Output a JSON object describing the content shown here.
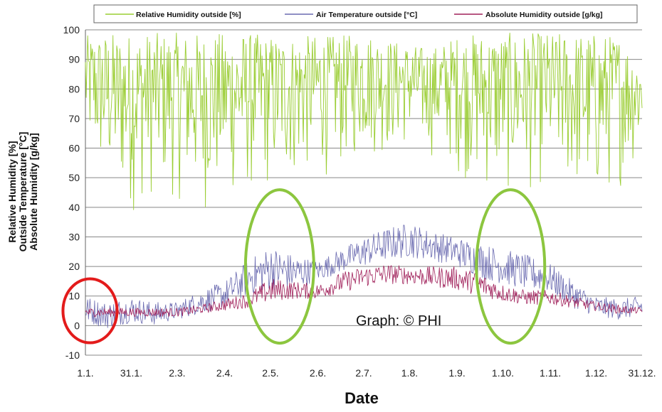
{
  "chart_data": {
    "type": "line",
    "xlabel": "Date",
    "ylabel_lines": [
      "Relative Humidity [%]",
      "Outside Temperature  [°C]",
      "Absolute Humidity [g/kg]"
    ],
    "ylim": [
      -10,
      100
    ],
    "yticks": [
      -10,
      0,
      10,
      20,
      30,
      40,
      50,
      60,
      70,
      80,
      90,
      100
    ],
    "xlim": [
      1,
      365
    ],
    "x_ticks": [
      {
        "day": 1,
        "label": "1.1."
      },
      {
        "day": 31,
        "label": "31.1."
      },
      {
        "day": 61,
        "label": "2.3."
      },
      {
        "day": 92,
        "label": "2.4."
      },
      {
        "day": 122,
        "label": "2.5."
      },
      {
        "day": 153,
        "label": "2.6."
      },
      {
        "day": 183,
        "label": "2.7."
      },
      {
        "day": 213,
        "label": "1.8."
      },
      {
        "day": 244,
        "label": "1.9."
      },
      {
        "day": 274,
        "label": "1.10."
      },
      {
        "day": 305,
        "label": "1.11."
      },
      {
        "day": 335,
        "label": "1.12."
      },
      {
        "day": 365,
        "label": "31.12."
      }
    ],
    "grid": "horizontal",
    "legend_position": "top",
    "annotation": "Graph: © PHI",
    "series": [
      {
        "name": "Relative Humidity outside [%]",
        "color": "#9acd32",
        "x": [
          1,
          15,
          31,
          45,
          61,
          76,
          92,
          107,
          122,
          137,
          153,
          168,
          183,
          198,
          213,
          228,
          244,
          259,
          274,
          289,
          305,
          320,
          335,
          350,
          365
        ],
        "high": [
          98,
          99,
          99,
          99,
          99,
          99,
          99,
          99,
          98,
          98,
          98,
          98,
          99,
          97,
          95,
          94,
          98,
          99,
          99,
          99,
          99,
          99,
          99,
          98,
          90
        ],
        "low": [
          55,
          40,
          35,
          40,
          40,
          35,
          38,
          40,
          42,
          45,
          48,
          50,
          55,
          55,
          58,
          55,
          50,
          42,
          40,
          42,
          45,
          40,
          35,
          45,
          55
        ]
      },
      {
        "name": "Air Temperature outside [°C]",
        "color": "#6a6ab0",
        "x": [
          1,
          15,
          31,
          45,
          61,
          76,
          92,
          107,
          122,
          137,
          153,
          168,
          183,
          198,
          213,
          228,
          244,
          259,
          274,
          289,
          305,
          320,
          335,
          350,
          365
        ],
        "high": [
          10,
          8,
          10,
          8,
          8,
          12,
          15,
          22,
          27,
          24,
          22,
          26,
          30,
          33,
          35,
          32,
          30,
          28,
          26,
          24,
          21,
          15,
          10,
          9,
          10
        ],
        "low": [
          1,
          -1,
          1,
          0,
          2,
          4,
          6,
          10,
          12,
          12,
          15,
          18,
          20,
          22,
          23,
          22,
          20,
          16,
          14,
          12,
          11,
          6,
          3,
          2,
          3
        ]
      },
      {
        "name": "Absolute Humidity outside [g/kg]",
        "color": "#a0205a",
        "x": [
          1,
          15,
          31,
          45,
          61,
          76,
          92,
          107,
          122,
          137,
          153,
          168,
          183,
          198,
          213,
          228,
          244,
          259,
          274,
          289,
          305,
          320,
          335,
          350,
          365
        ],
        "high": [
          6,
          6,
          6,
          6,
          6,
          7,
          9,
          11,
          16,
          15,
          14,
          18,
          20,
          21,
          20,
          20,
          20,
          18,
          14,
          12,
          12,
          10,
          8,
          7,
          6
        ],
        "low": [
          3,
          3,
          3,
          3,
          3,
          4,
          5,
          6,
          8,
          9,
          9,
          11,
          13,
          14,
          14,
          13,
          12,
          10,
          8,
          7,
          7,
          6,
          5,
          4,
          4
        ]
      }
    ],
    "markers": [
      {
        "shape": "ellipse",
        "color": "#e31b1b",
        "x_center": 4,
        "y_center": 5
      },
      {
        "shape": "ellipse",
        "color": "#8cc63f",
        "x_center": 128,
        "y_center": 20
      },
      {
        "shape": "ellipse",
        "color": "#8cc63f",
        "x_center": 279,
        "y_center": 20
      }
    ]
  }
}
